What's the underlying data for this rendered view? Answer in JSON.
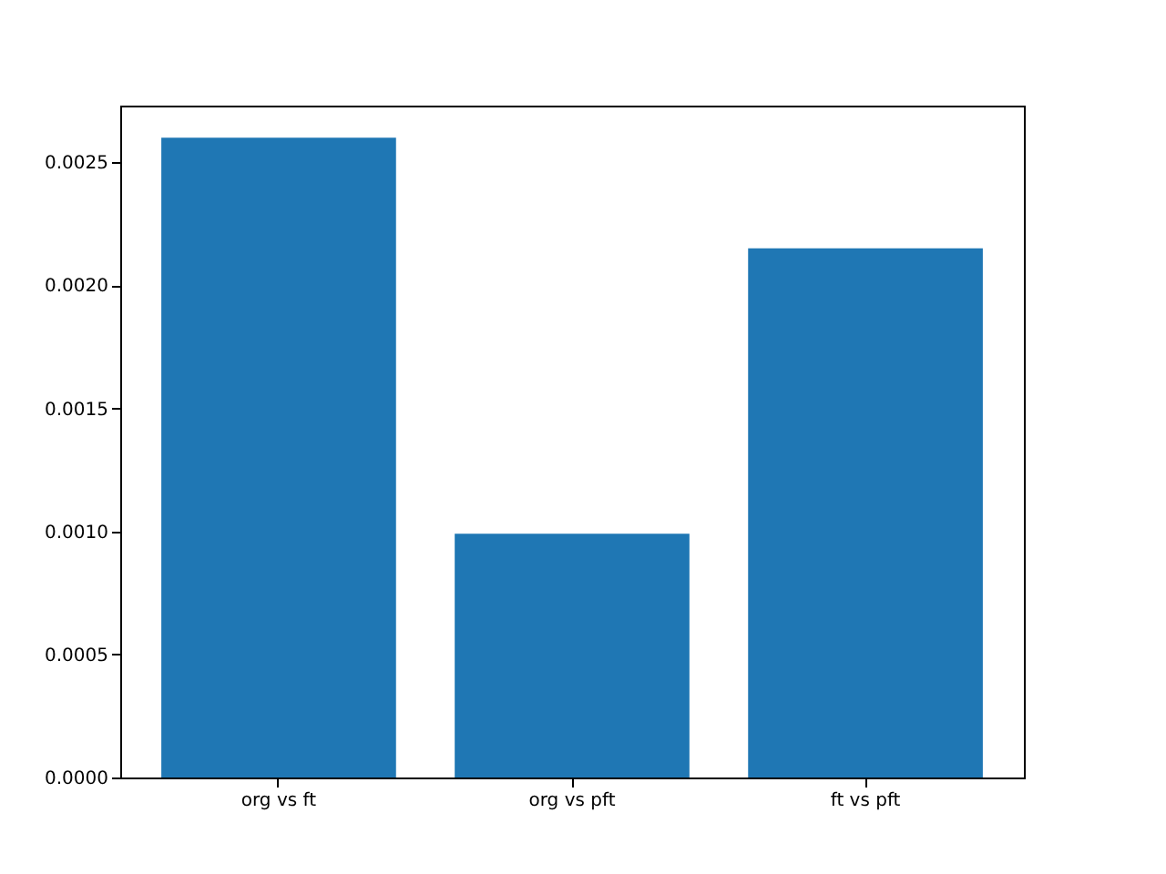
{
  "chart_data": {
    "type": "bar",
    "categories": [
      "org vs ft",
      "org vs pft",
      "ft vs pft"
    ],
    "values": [
      0.0026,
      0.00099,
      0.00215
    ],
    "color": "#1f77b4",
    "ylim": [
      0,
      0.00273
    ],
    "yticks": [
      {
        "value": 0,
        "label": "0.0000"
      },
      {
        "value": 0.0005,
        "label": "0.0005"
      },
      {
        "value": 0.001,
        "label": "0.0010"
      },
      {
        "value": 0.0015,
        "label": "0.0015"
      },
      {
        "value": 0.002,
        "label": "0.0020"
      },
      {
        "value": 0.0025,
        "label": "0.0025"
      }
    ],
    "grid": false
  }
}
